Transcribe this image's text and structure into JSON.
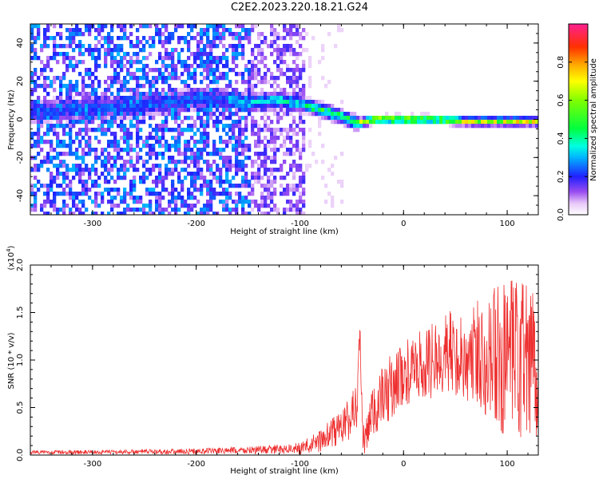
{
  "title": "C2E2.2023.220.18.21.G24",
  "chart_data": [
    {
      "type": "heatmap",
      "xlabel": "Height of straight line (km)",
      "ylabel": "Frequency (Hz)",
      "xlim": [
        -360,
        130
      ],
      "ylim": [
        -50,
        50
      ],
      "x_ticks": [
        -300,
        -200,
        -100,
        0,
        100
      ],
      "y_ticks": [
        -40,
        -20,
        0,
        20,
        40
      ],
      "ridge": {
        "x": [
          -360,
          -260,
          -220,
          -200,
          -180,
          -150,
          -120,
          -100,
          -80,
          -60,
          -45,
          -30,
          0,
          30,
          60,
          100,
          130
        ],
        "frequency_hz": [
          5,
          8,
          10,
          12,
          12,
          10,
          11,
          9,
          6,
          2,
          -1,
          1,
          1,
          1,
          0,
          0,
          0
        ]
      },
      "colorbar": {
        "label": "Normalized spectral amplitude",
        "range": [
          0.0,
          1.0
        ],
        "ticks": [
          0.0,
          0.2,
          0.4,
          0.6,
          0.8
        ],
        "tick_labels": [
          "0.0",
          "0.2",
          "0.4",
          "0.6",
          "0.8"
        ]
      },
      "grid": false
    },
    {
      "type": "line",
      "xlabel": "Height of straight line (km)",
      "ylabel": "SNR (10 * v/v)",
      "y_multiplier_label": "(x10",
      "y_multiplier_exp": "4",
      "y_multiplier_close": ")",
      "xlim": [
        -360,
        130
      ],
      "ylim": [
        0,
        20000
      ],
      "x_ticks": [
        -300,
        -200,
        -100,
        0,
        100
      ],
      "y_ticks": [
        0,
        5000,
        10000,
        15000,
        20000
      ],
      "y_tick_labels": [
        "0.0",
        "0.5",
        "1.0",
        "1.5",
        "2.0"
      ],
      "color": "#ee3030",
      "series": [
        {
          "x": [
            -360,
            -300,
            -250,
            -200,
            -150,
            -120,
            -100,
            -80,
            -60,
            -50,
            -45,
            -42,
            -40,
            -38,
            -35,
            -30,
            -20,
            -10,
            0,
            10,
            20,
            30,
            40,
            50,
            60,
            70,
            80,
            90,
            100,
            110,
            120,
            130
          ],
          "values": [
            300,
            300,
            350,
            400,
            500,
            600,
            700,
            1500,
            3000,
            4000,
            6000,
            13000,
            3000,
            1000,
            2000,
            4500,
            6000,
            7500,
            8500,
            9000,
            9500,
            10000,
            11000,
            10500,
            10000,
            10500,
            11000,
            10000,
            9500,
            10000,
            9000,
            10000
          ],
          "spread": [
            200,
            200,
            250,
            300,
            400,
            500,
            600,
            1200,
            2000,
            2500,
            3000,
            3000,
            2500,
            1500,
            2500,
            3000,
            3500,
            3500,
            3500,
            3500,
            4000,
            4000,
            4500,
            4500,
            5000,
            6000,
            7000,
            8000,
            8500,
            9000,
            9500,
            9500
          ]
        }
      ],
      "grid": false
    }
  ]
}
